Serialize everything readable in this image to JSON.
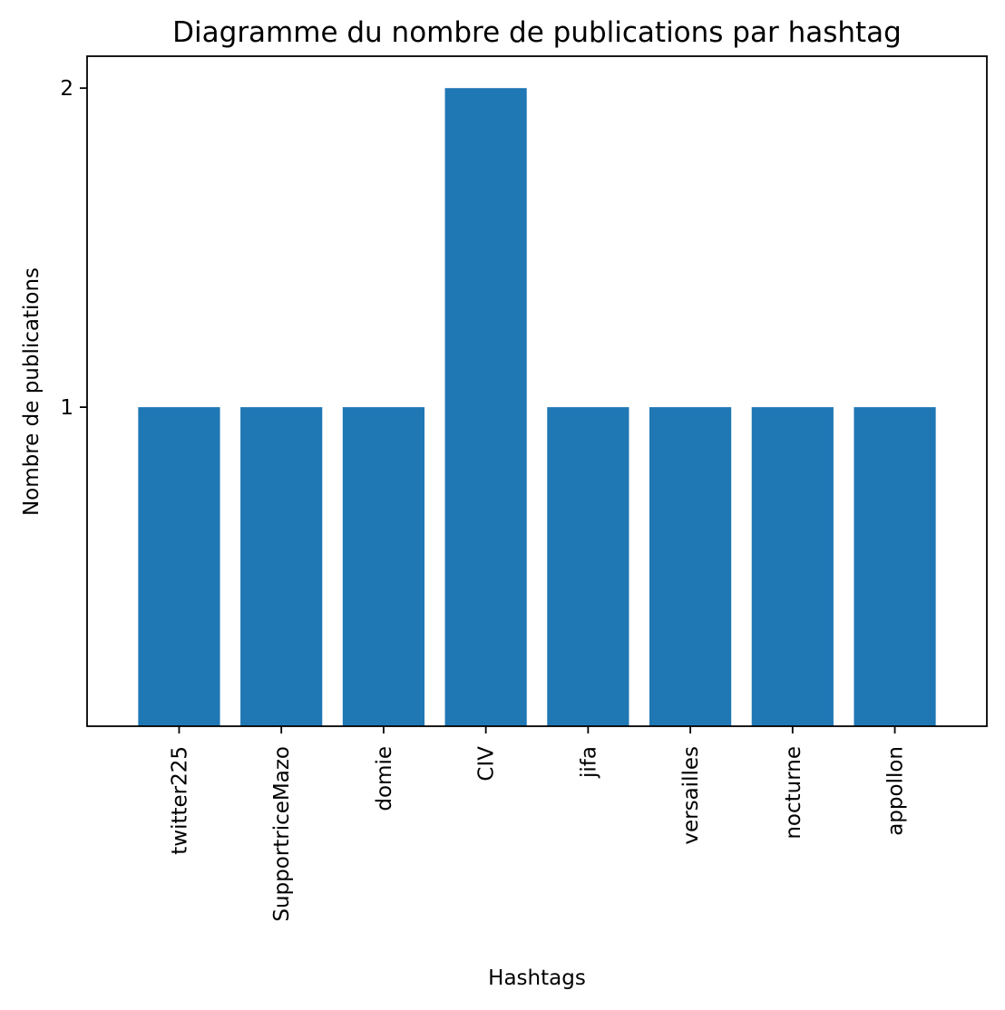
{
  "chart_data": {
    "type": "bar",
    "title": "Diagramme du nombre de publications par hashtag",
    "xlabel": "Hashtags",
    "ylabel": "Nombre de publications",
    "categories": [
      "twitter225",
      "SupportriceMazo",
      "domie",
      "CIV",
      "jifa",
      "versailles",
      "nocturne",
      "appollon"
    ],
    "values": [
      1,
      1,
      1,
      2,
      1,
      1,
      1,
      1
    ],
    "yticks": [
      1,
      2
    ],
    "ylim": [
      0,
      2.1
    ],
    "xtick_rotation": "vertical",
    "grid": false,
    "legend": "none",
    "bar_color": "#1f77b4"
  }
}
